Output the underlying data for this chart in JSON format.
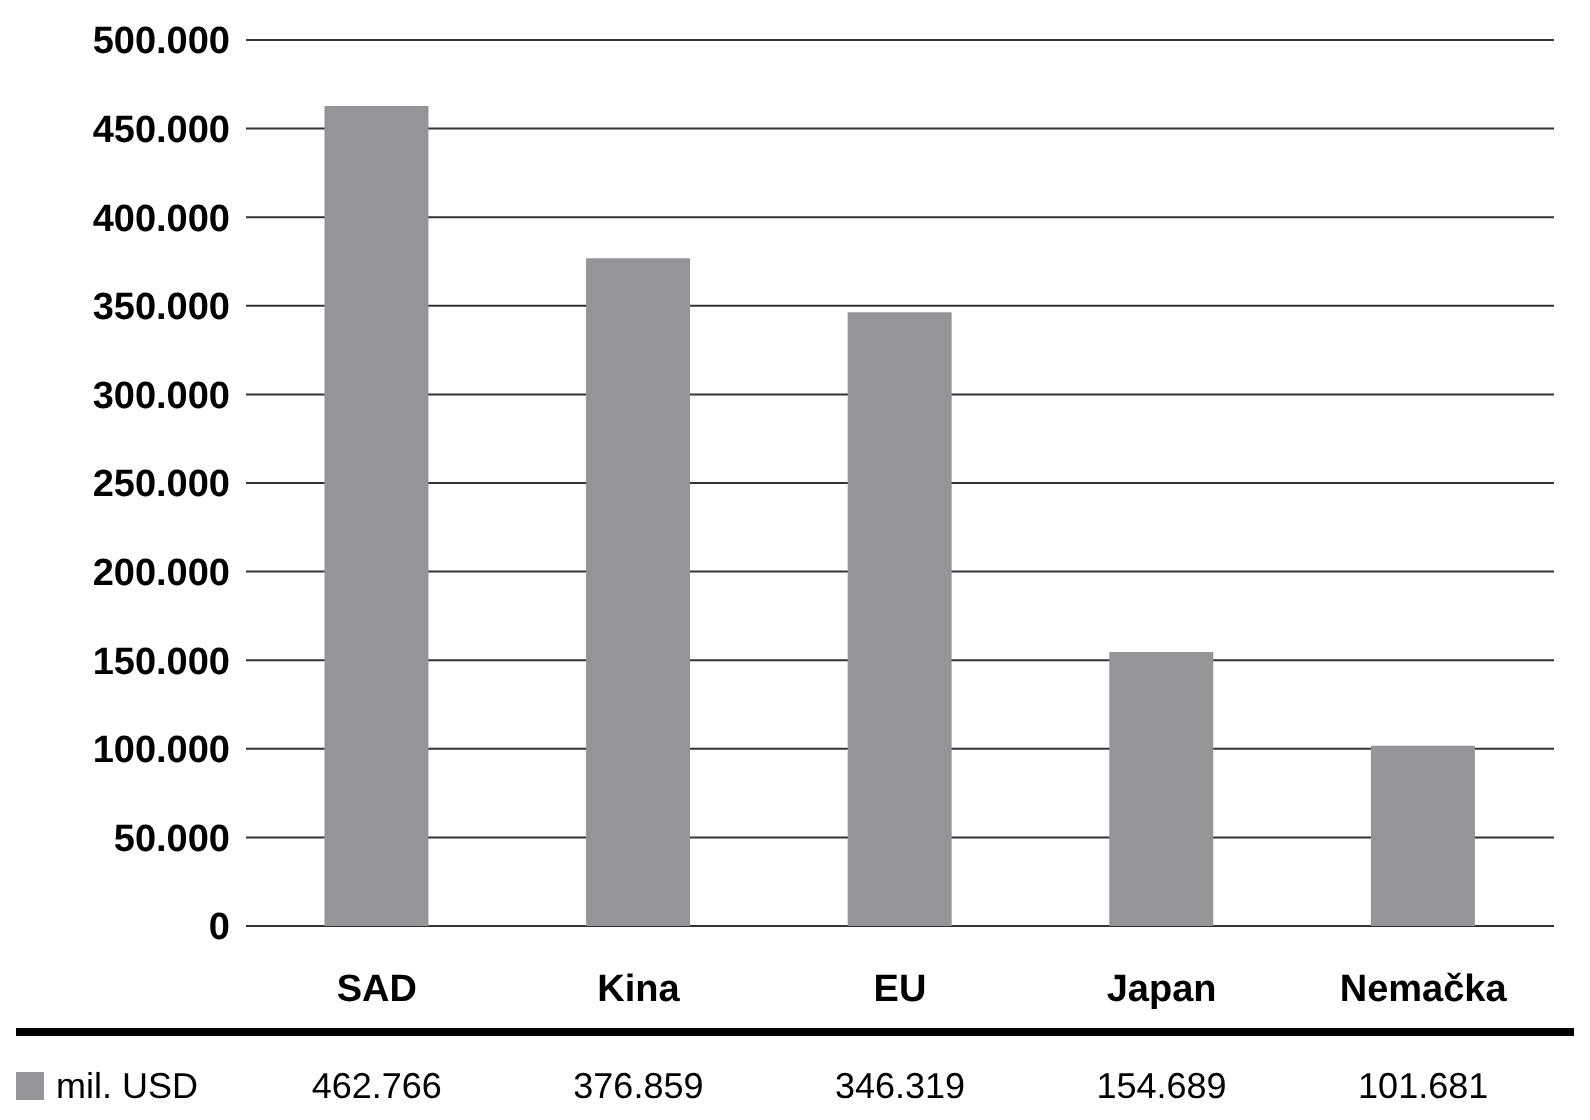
{
  "chart_data": {
    "type": "bar",
    "categories": [
      "SAD",
      "Kina",
      "EU",
      "Japan",
      "Nemačka"
    ],
    "series": [
      {
        "name": "mil. USD",
        "color": "#939598",
        "values": [
          462766,
          376859,
          346319,
          154689,
          101681
        ],
        "value_labels": [
          "462.766",
          "376.859",
          "346.319",
          "154.689",
          "101.681"
        ]
      }
    ],
    "ylim": [
      0,
      500000
    ],
    "yticks": [
      {
        "value": 0,
        "label": "0"
      },
      {
        "value": 50000,
        "label": "50.000"
      },
      {
        "value": 100000,
        "label": "100.000"
      },
      {
        "value": 150000,
        "label": "150.000"
      },
      {
        "value": 200000,
        "label": "200.000"
      },
      {
        "value": 250000,
        "label": "250.000"
      },
      {
        "value": 300000,
        "label": "300.000"
      },
      {
        "value": 350000,
        "label": "350.000"
      },
      {
        "value": 400000,
        "label": "400.000"
      },
      {
        "value": 450000,
        "label": "450.000"
      },
      {
        "value": 500000,
        "label": "500.000"
      }
    ],
    "grid": "y",
    "legend": "bottom"
  }
}
